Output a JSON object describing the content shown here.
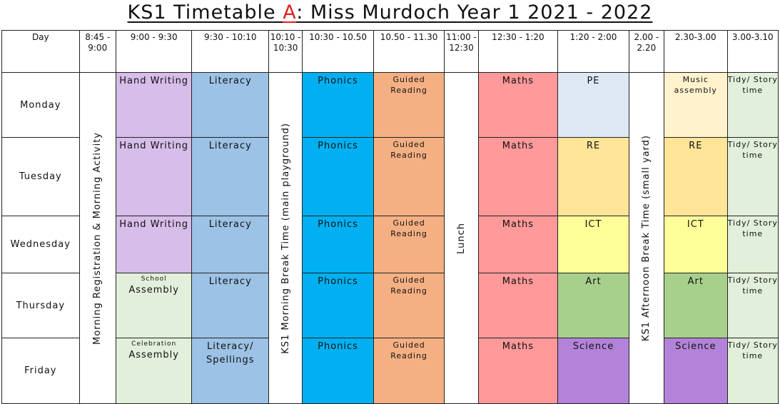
{
  "title": {
    "prefix": "KS1 Timetable ",
    "letter": "A",
    "suffix": ": Miss Murdoch Year 1 2021 - 2022"
  },
  "headers": [
    "Day",
    "8:45 - 9:00",
    "9:00 - 9:30",
    "9:30 - 10:10",
    "10:10 - 10:30",
    "10:30 - 10.50",
    "10.50 - 11.30",
    "11:00 - 12:30",
    "12:30 - 1:20",
    "1:20 - 2:00",
    "2.00 - 2.20",
    "2.30-3.00",
    "3.00-3.10"
  ],
  "days": [
    "Monday",
    "Tuesday",
    "Wednesday",
    "Thursday",
    "Friday"
  ],
  "spans": {
    "registration": "Morning Registration & Morning Activity",
    "morning_break": "KS1 Morning Break Time (main playground)",
    "lunch": "Lunch",
    "afternoon_break": "KS1 Afternoon Break Time (small yard)"
  },
  "rows": [
    {
      "c1": "Hand Writing",
      "c1small": "",
      "c2": "Literacy",
      "c4": "Phonics",
      "c5": "Guided Reading",
      "c7": "Maths",
      "c8": "PE",
      "c10": "Music assembly",
      "c11": "Tidy/ Story time"
    },
    {
      "c1": "Hand Writing",
      "c1small": "",
      "c2": "Literacy",
      "c4": "Phonics",
      "c5": "Guided Reading",
      "c7": "Maths",
      "c8": "RE",
      "c10": "RE",
      "c11": "Tidy/ Story time"
    },
    {
      "c1": "Hand Writing",
      "c1small": "",
      "c2": "Literacy",
      "c4": "Phonics",
      "c5": "Guided Reading",
      "c7": "Maths",
      "c8": "ICT",
      "c10": "ICT",
      "c11": "Tidy/ Story time"
    },
    {
      "c1": "Assembly",
      "c1small": "School",
      "c2": "Literacy",
      "c4": "Phonics",
      "c5": "Guided Reading",
      "c7": "Maths",
      "c8": "Art",
      "c10": "Art",
      "c11": "Tidy/ Story time"
    },
    {
      "c1": "Assembly",
      "c1small": "Celebration",
      "c2": "Literacy/ Spellings",
      "c4": "Phonics",
      "c5": "Guided Reading",
      "c7": "Maths",
      "c8": "Science",
      "c10": "Science",
      "c11": "Tidy/ Story time"
    }
  ],
  "colors": {
    "title_highlight": "#e3201b",
    "handwriting": "#d7bde9",
    "literacy": "#9cc2e5",
    "phonics": "#00b0f0",
    "guided_reading": "#f4b083",
    "maths": "#ff999a",
    "pe": "#dde8f4",
    "re": "#ffe598",
    "ict": "#ffff99",
    "art": "#a8d08d",
    "science": "#b383d9",
    "music": "#fff2cc",
    "tidy": "#e2efda"
  }
}
